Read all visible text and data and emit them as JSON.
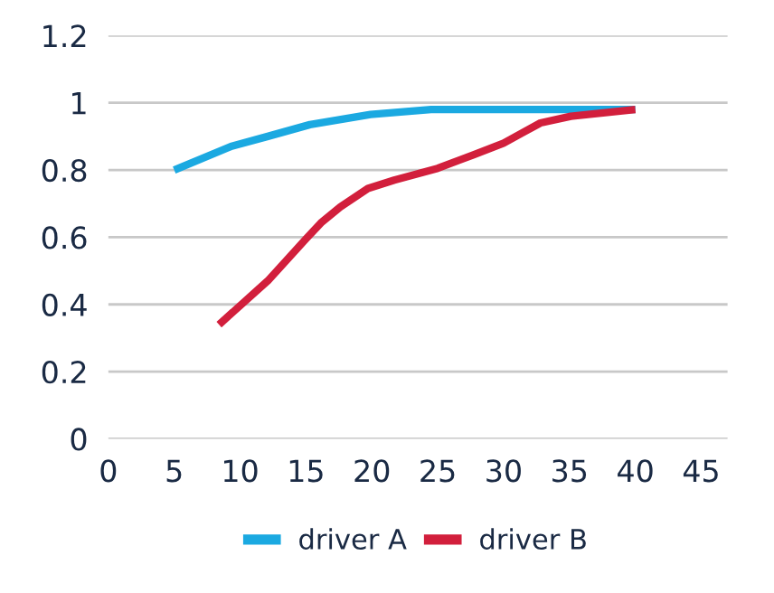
{
  "chart_data": {
    "type": "line",
    "series": [
      {
        "name": "driver A",
        "color": "#1ba9e1",
        "x": [
          5,
          9.3,
          12.1,
          15.3,
          19.9,
          24.5,
          30,
          40
        ],
        "values": [
          0.8,
          0.87,
          0.9,
          0.935,
          0.965,
          0.98,
          0.98,
          0.98
        ]
      },
      {
        "name": "driver B",
        "color": "#d21f3c",
        "x": [
          8.4,
          12.1,
          15,
          16.2,
          17.6,
          19.7,
          21.7,
          25,
          27.7,
          30,
          31.4,
          32.8,
          35.1,
          40
        ],
        "values": [
          0.34,
          0.47,
          0.595,
          0.645,
          0.69,
          0.745,
          0.77,
          0.805,
          0.845,
          0.88,
          0.91,
          0.94,
          0.96,
          0.98
        ]
      }
    ],
    "xlim": [
      0,
      47
    ],
    "xticks": [
      0,
      5,
      10,
      15,
      20,
      25,
      30,
      35,
      40,
      45
    ],
    "ylim": [
      0,
      1.2
    ],
    "yticks": [
      0,
      0.2,
      0.4,
      0.6,
      0.8,
      1,
      1.2
    ],
    "grid": "y",
    "legend": "bottom",
    "marker": "none",
    "line_style": "solid"
  }
}
